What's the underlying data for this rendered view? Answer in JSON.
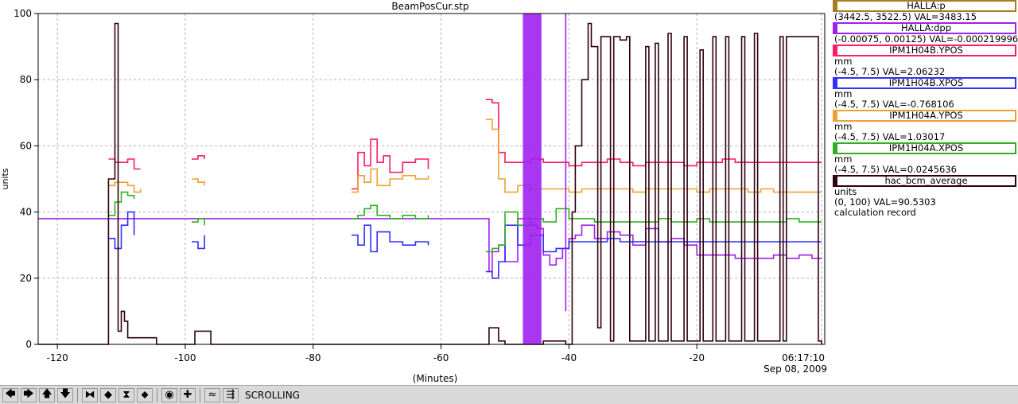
{
  "chart_data": {
    "type": "line",
    "title": "BeamPosCur.stp",
    "xlabel": "(Minutes)",
    "ylabel": "units",
    "xlim": [
      -123,
      0
    ],
    "ylim": [
      0,
      100
    ],
    "x_ticks": [
      -120,
      -100,
      -80,
      -60,
      -40,
      -20
    ],
    "y_ticks": [
      0,
      20,
      40,
      60,
      80,
      100
    ],
    "grid": true,
    "time_label": "06:17:10",
    "date_label": "Sep 08, 2009",
    "series": [
      {
        "name": "HALLA:p",
        "color": "#a08020",
        "x": [],
        "y": []
      },
      {
        "name": "HALLA:dpp",
        "color": "#a020f0",
        "x": [
          -123,
          -53,
          -52.5,
          -52,
          -51,
          -50,
          -48,
          -46,
          -45,
          -44,
          -43,
          -42,
          -41,
          -40,
          -39,
          -38,
          -36,
          -34,
          -32,
          -30,
          -28,
          -26,
          -24,
          -22,
          -20,
          -18,
          -16,
          -14,
          -12,
          -10,
          -8,
          -6,
          -4,
          -2,
          -0.5
        ],
        "y": [
          38,
          38,
          22,
          28,
          30,
          25,
          38,
          36,
          35,
          27,
          24,
          26,
          29,
          32,
          33,
          36,
          32,
          34,
          33,
          30,
          35,
          31,
          32,
          30,
          27,
          27,
          27,
          26,
          26,
          26,
          27,
          26,
          27,
          26,
          26
        ]
      },
      {
        "name": "IPM1H04B.YPOS",
        "color": "#ff1a66",
        "x": [
          -123,
          -112,
          -111,
          -109,
          -108,
          -107,
          -106,
          -99,
          -98,
          -97,
          -96,
          -74,
          -73,
          -72,
          -71,
          -70,
          -69,
          -68,
          -66,
          -64,
          -62,
          -61,
          -60,
          -53,
          -52,
          -51,
          -50,
          -48,
          -46,
          -44,
          -42,
          -40,
          -38,
          -36,
          -34,
          -32,
          -30,
          -28,
          -26,
          -24,
          -22,
          -20,
          -18,
          -16,
          -14,
          -12,
          -10,
          -8,
          -6,
          -4,
          -2,
          -0.5
        ],
        "y": [
          null,
          56,
          55,
          56,
          53,
          53,
          null,
          56,
          57,
          56,
          null,
          47,
          58,
          54,
          62,
          55,
          57,
          52,
          55,
          56,
          53,
          null,
          null,
          74,
          73,
          58,
          55,
          55,
          56,
          55,
          55,
          54,
          55,
          55,
          56,
          55,
          54,
          55,
          55,
          55,
          54,
          55,
          55,
          56,
          55,
          55,
          55,
          55,
          55,
          55,
          55,
          55
        ]
      },
      {
        "name": "IPM1H04B.XPOS",
        "color": "#3030ff",
        "x": [
          -123,
          -112,
          -111,
          -110,
          -109,
          -108,
          -106,
          -99,
          -98,
          -97,
          -96,
          -74,
          -73,
          -72,
          -71,
          -70,
          -68,
          -66,
          -64,
          -62,
          -61,
          -60,
          -53,
          -52,
          -51,
          -50,
          -48,
          -46,
          -44,
          -42,
          -40,
          -38,
          -36,
          -34,
          -32,
          -30,
          -28,
          -26,
          -24,
          -22,
          -20,
          -18,
          -16,
          -14,
          -12,
          -10,
          -8,
          -6,
          -4,
          -2,
          -0.5
        ],
        "y": [
          null,
          32,
          29,
          36,
          40,
          33,
          null,
          31,
          29,
          33,
          null,
          33,
          30,
          36,
          28,
          34,
          31,
          30,
          31,
          30,
          null,
          null,
          22,
          20,
          25,
          36,
          30,
          33,
          28,
          29,
          31,
          31,
          31,
          32,
          31,
          31,
          31,
          31,
          31,
          31,
          31,
          31,
          31,
          31,
          31,
          31,
          31,
          31,
          31,
          31,
          31
        ]
      },
      {
        "name": "IPM1H04A.YPOS",
        "color": "#f0a030",
        "x": [
          -123,
          -112,
          -111,
          -109,
          -108,
          -107,
          -106,
          -99,
          -98,
          -97,
          -96,
          -74,
          -73,
          -72,
          -71,
          -70,
          -68,
          -66,
          -64,
          -62,
          -61,
          -60,
          -53,
          -52,
          -51,
          -50,
          -48,
          -46,
          -44,
          -42,
          -40,
          -38,
          -36,
          -34,
          -32,
          -30,
          -28,
          -26,
          -24,
          -22,
          -20,
          -18,
          -16,
          -14,
          -12,
          -10,
          -8,
          -6,
          -4,
          -2,
          -0.5
        ],
        "y": [
          null,
          48,
          49,
          48,
          46,
          47,
          null,
          50,
          49,
          48,
          null,
          46,
          51,
          49,
          53,
          48,
          50,
          51,
          50,
          51,
          null,
          null,
          68,
          65,
          50,
          46,
          48,
          47,
          47,
          47,
          46,
          47,
          47,
          47,
          47,
          46,
          47,
          47,
          47,
          47,
          46,
          47,
          47,
          47,
          46,
          47,
          46,
          46,
          46,
          46,
          46
        ]
      },
      {
        "name": "IPM1H04A.XPOS",
        "color": "#30b020",
        "x": [
          -123,
          -112,
          -111,
          -110,
          -109,
          -108,
          -106,
          -99,
          -98,
          -97,
          -96,
          -74,
          -73,
          -72,
          -71,
          -70,
          -68,
          -66,
          -64,
          -62,
          -61,
          -60,
          -53,
          -52,
          -51,
          -50,
          -48,
          -46,
          -44,
          -42,
          -40,
          -38,
          -36,
          -34,
          -32,
          -30,
          -28,
          -26,
          -24,
          -22,
          -20,
          -18,
          -16,
          -14,
          -12,
          -10,
          -8,
          -6,
          -4,
          -2,
          -0.5
        ],
        "y": [
          null,
          39,
          43,
          46,
          45,
          44,
          null,
          37,
          38,
          36,
          null,
          38,
          39,
          41,
          42,
          39,
          38,
          39,
          38,
          39,
          null,
          null,
          28,
          29,
          30,
          40,
          36,
          38,
          37,
          41,
          38,
          38,
          37,
          37,
          37,
          37,
          37,
          38,
          37,
          37,
          38,
          37,
          37,
          37,
          37,
          37,
          37,
          38,
          37,
          37,
          37
        ]
      },
      {
        "name": "hac_bcm_average",
        "color": "#300010",
        "x": [
          -123,
          -112.5,
          -112,
          -111,
          -110.5,
          -110,
          -109.5,
          -109,
          -108,
          -107.5,
          -105,
          -104.5,
          -99,
          -98.5,
          -96.5,
          -96,
          -53,
          -52.5,
          -51,
          -50,
          -47,
          -44,
          -41,
          -40.5,
          -39.5,
          -39,
          -38,
          -37,
          -36.5,
          -35.5,
          -35,
          -33.5,
          -33,
          -32,
          -31,
          -30.5,
          -28,
          -27.5,
          -26.5,
          -26,
          -24.5,
          -24,
          -22,
          -21.5,
          -19.5,
          -19,
          -17.5,
          -17,
          -15.5,
          -15,
          -13,
          -12.5,
          -11,
          -10.5,
          -7,
          -6.5,
          -6,
          -1.5,
          -1,
          -0.5
        ],
        "y": [
          0,
          0,
          50,
          97,
          4,
          10,
          7,
          2,
          2,
          2,
          2,
          0,
          0,
          4,
          4,
          0,
          0,
          5,
          1,
          0,
          0,
          1,
          1,
          0,
          40,
          60,
          80,
          97,
          90,
          5,
          93,
          1,
          93,
          92,
          93,
          1,
          90,
          1,
          91,
          1,
          94,
          1,
          93,
          1,
          89,
          1,
          93,
          1,
          93,
          1,
          93,
          1,
          94,
          1,
          93,
          1,
          93,
          93,
          1,
          0
        ]
      }
    ]
  },
  "legend": [
    {
      "name": "HALLA:p",
      "color": "#a08020",
      "lines": [
        "(3442.5, 3522.5) VAL=3483.15"
      ]
    },
    {
      "name": "HALLA:dpp",
      "color": "#a020f0",
      "lines": [
        "(-0.00075, 0.00125) VAL=-0.000219996"
      ]
    },
    {
      "name": "IPM1H04B.YPOS",
      "color": "#ff1a66",
      "lines": [
        "mm",
        "(-4.5, 7.5) VAL=2.06232"
      ]
    },
    {
      "name": "IPM1H04B.XPOS",
      "color": "#3030ff",
      "lines": [
        "mm",
        "(-4.5, 7.5) VAL=-0.768106"
      ]
    },
    {
      "name": "IPM1H04A.YPOS",
      "color": "#f0a030",
      "lines": [
        "mm",
        "(-4.5, 7.5) VAL=1.03017"
      ]
    },
    {
      "name": "IPM1H04A.XPOS",
      "color": "#30b020",
      "lines": [
        "mm",
        "(-4.5, 7.5) VAL=0.0245636"
      ]
    },
    {
      "name": "hac_bcm_average",
      "color": "#300010",
      "lines": [
        "units",
        "(0, 100) VAL=90.5303",
        "calculation record"
      ]
    }
  ],
  "toolbar": {
    "buttons": [
      {
        "name": "scroll-left-button",
        "glyph": "🡄"
      },
      {
        "name": "scroll-right-button",
        "glyph": "🡆"
      },
      {
        "name": "scroll-up-button",
        "glyph": "🡅"
      },
      {
        "name": "scroll-down-button",
        "glyph": "🡇"
      },
      {
        "name": "sep"
      },
      {
        "name": "zoom-in-x-button",
        "glyph": "⧓"
      },
      {
        "name": "zoom-out-x-button",
        "glyph": "◆"
      },
      {
        "name": "zoom-in-y-button",
        "glyph": "⧗"
      },
      {
        "name": "zoom-out-y-button",
        "glyph": "⬥"
      },
      {
        "name": "sep"
      },
      {
        "name": "reset-button",
        "glyph": "◉"
      },
      {
        "name": "add-button",
        "glyph": "✚"
      },
      {
        "name": "sep"
      },
      {
        "name": "autoscale-button",
        "glyph": "≈"
      },
      {
        "name": "scroll-mode-button",
        "glyph": "⇶"
      }
    ],
    "mode_label": "SCROLLING"
  }
}
